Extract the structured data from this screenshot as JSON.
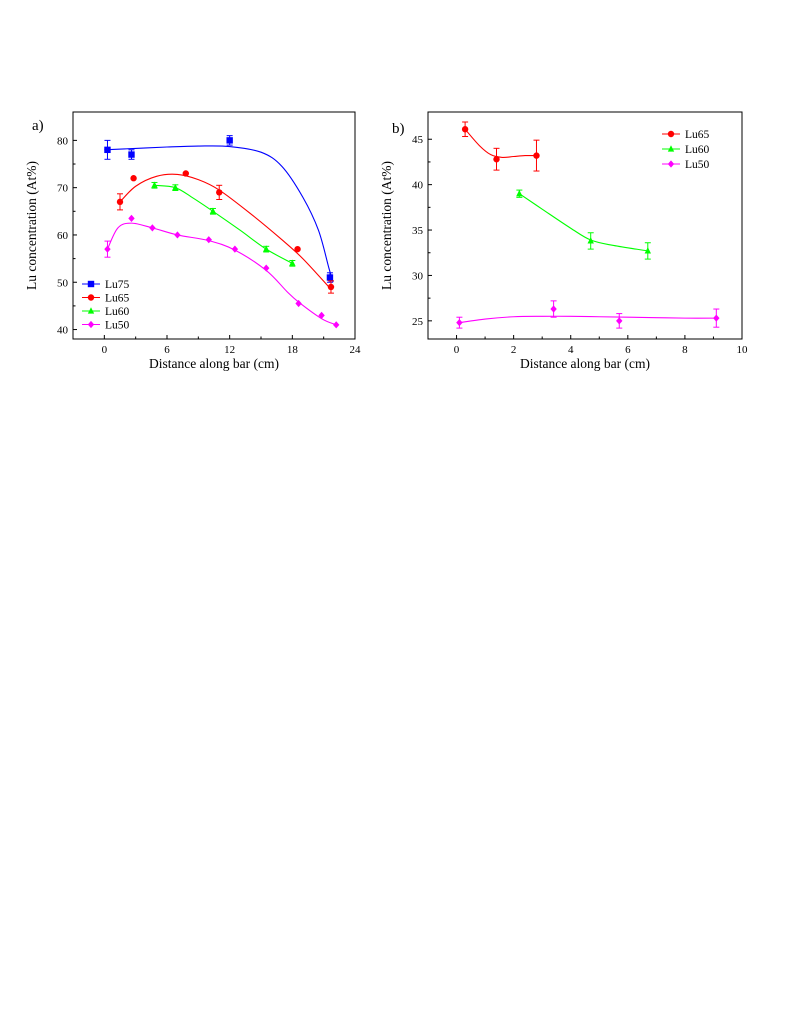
{
  "chart_data": [
    {
      "panel_label": "a)",
      "type": "scatter",
      "xlabel": "Distance along bar (cm)",
      "ylabel": "Lu concentration (At%)",
      "xlim": [
        -3,
        24
      ],
      "ylim": [
        38,
        86
      ],
      "xticks": [
        0,
        6,
        12,
        18,
        24
      ],
      "yticks": [
        40,
        50,
        60,
        70,
        80
      ],
      "legend_position": "bottom-left",
      "series": [
        {
          "name": "Lu75",
          "marker": "square",
          "color": "#0000ff",
          "x": [
            0.3,
            2.6,
            12.0,
            21.6
          ],
          "y": [
            78,
            77,
            80,
            51
          ],
          "err": [
            2.0,
            1.0,
            1.0,
            1.0
          ],
          "fit": {
            "x": [
              0,
              3,
              6,
              9,
              12,
              15,
              17,
              19,
              20.5,
              21.5,
              21.9
            ],
            "y": [
              78,
              78.3,
              78.6,
              78.8,
              78.7,
              77.5,
              74.5,
              68,
              61,
              53,
              50
            ]
          }
        },
        {
          "name": "Lu65",
          "marker": "circle",
          "color": "#ff0000",
          "x": [
            1.5,
            2.8,
            7.8,
            11.0,
            18.5,
            21.7
          ],
          "y": [
            67,
            72,
            73,
            69,
            57,
            49
          ],
          "err": [
            1.7,
            0,
            0,
            1.5,
            0,
            1.3
          ],
          "fit": {
            "x": [
              1.5,
              3,
              5,
              7,
              9,
              11,
              14,
              17,
              19,
              21.5
            ],
            "y": [
              67,
              70.3,
              72.4,
              72.8,
              71.7,
              69.5,
              64.5,
              59,
              55,
              49
            ]
          }
        },
        {
          "name": "Lu60",
          "marker": "triangle",
          "color": "#00ff00",
          "x": [
            4.8,
            6.8,
            10.4,
            15.5,
            18.0
          ],
          "y": [
            70.5,
            70,
            65,
            57,
            54
          ],
          "err": [
            0.6,
            0.6,
            0.6,
            0.6,
            0.6
          ],
          "fit": {
            "x": [
              4.8,
              6.8,
              8.5,
              10.4,
              13,
              15.5,
              18
            ],
            "y": [
              70.5,
              70,
              67.8,
              65,
              61,
              57,
              54
            ]
          }
        },
        {
          "name": "Lu50",
          "marker": "diamond",
          "color": "#ff00ff",
          "x": [
            0.3,
            2.6,
            4.6,
            7.0,
            10.0,
            12.5,
            15.5,
            18.6,
            20.8,
            22.2
          ],
          "y": [
            57,
            63.5,
            61.5,
            60,
            59,
            57,
            53,
            45.5,
            43,
            41
          ],
          "err": [
            1.7,
            0,
            0,
            0,
            0,
            0,
            0,
            0,
            0,
            0
          ],
          "fit": {
            "x": [
              0.3,
              1.3,
              2.6,
              4.6,
              7,
              10,
              12.5,
              15.5,
              17.5,
              18.6,
              20.8,
              22.2
            ],
            "y": [
              57,
              61.5,
              62.5,
              61.5,
              60,
              58.8,
              56.8,
              52.5,
              48,
              45.8,
              42.3,
              41
            ]
          }
        }
      ]
    },
    {
      "panel_label": "b)",
      "type": "scatter",
      "xlabel": "Distance along bar (cm)",
      "ylabel": "Lu concentration (At%)",
      "xlim": [
        -1,
        10
      ],
      "ylim": [
        23,
        48
      ],
      "xticks": [
        0,
        2,
        4,
        6,
        8,
        10
      ],
      "yticks": [
        25,
        30,
        35,
        40,
        45
      ],
      "legend_position": "top-right",
      "series": [
        {
          "name": "Lu65",
          "marker": "circle",
          "color": "#ff0000",
          "x": [
            0.3,
            1.4,
            2.8
          ],
          "y": [
            46.1,
            42.8,
            43.2
          ],
          "err": [
            0.8,
            1.2,
            1.7
          ],
          "fit": {
            "x": [
              0.3,
              0.8,
              1.2,
              1.6,
              2.0,
              2.4,
              2.8
            ],
            "y": [
              46.1,
              44.3,
              43.3,
              43.0,
              43.1,
              43.2,
              43.2
            ]
          }
        },
        {
          "name": "Lu60",
          "marker": "triangle",
          "color": "#00ff00",
          "x": [
            2.2,
            4.7,
            6.7
          ],
          "y": [
            39,
            33.8,
            32.7
          ],
          "err": [
            0.4,
            0.9,
            0.9
          ],
          "fit": {
            "x": [
              2.2,
              3,
              4,
              4.7,
              5.5,
              6.7
            ],
            "y": [
              39,
              37.3,
              35.2,
              33.9,
              33.3,
              32.7
            ]
          }
        },
        {
          "name": "Lu50",
          "marker": "diamond",
          "color": "#ff00ff",
          "x": [
            0.1,
            3.4,
            5.7,
            9.1
          ],
          "y": [
            24.8,
            26.3,
            25.0,
            25.3
          ],
          "err": [
            0.6,
            0.9,
            0.8,
            1.0
          ],
          "fit": {
            "x": [
              0.1,
              1,
              2,
              3,
              4,
              5,
              6,
              7,
              8,
              9.1
            ],
            "y": [
              24.8,
              25.2,
              25.45,
              25.5,
              25.5,
              25.45,
              25.4,
              25.35,
              25.3,
              25.3
            ]
          }
        }
      ]
    }
  ]
}
